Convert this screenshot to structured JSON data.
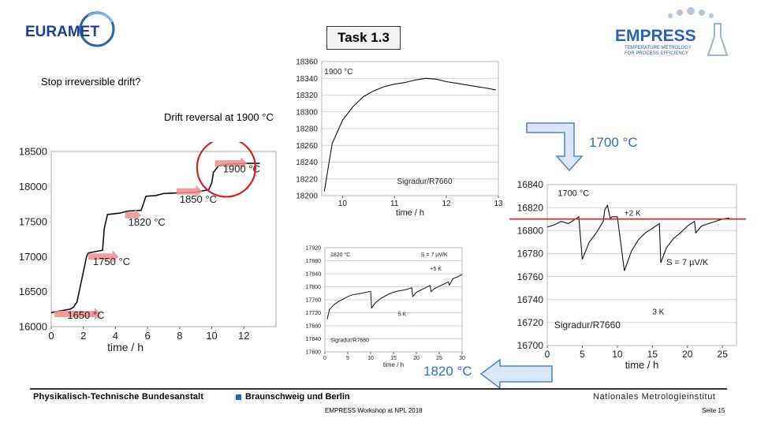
{
  "header": {
    "task_label": "Task 1.3",
    "euramet_logo_text": "EURAMET",
    "empress_logo_text": "EMPRESS",
    "empress_tagline_1": "TEMPERATURE METROLOGY",
    "empress_tagline_2": "FOR PROCESS EFFICIENCY"
  },
  "annotations": {
    "stop_question": "Stop irreversible drift?",
    "drift_reversal": "Drift reversal at 1900 °C",
    "arrow_label_1700": "1700 °C",
    "arrow_label_1820": "1820 °C"
  },
  "footer": {
    "institute_left": "Physikalisch-Technische Bundesanstalt",
    "institute_city": "Braunschweig und Berlin",
    "institute_right": "Nationales Metrologieinstitut",
    "workshop": "EMPRESS Workshop at NPL 2018",
    "page": "Seite 15"
  },
  "colors": {
    "accent_blue": "#2f6fc4",
    "highlight_red": "#d42020",
    "step_arrow_pink": "#f08c8c"
  },
  "chart_data": [
    {
      "type": "line",
      "xlabel": "time / h",
      "ylabel": "",
      "xlim": [
        0,
        14
      ],
      "ylim": [
        16000,
        18500
      ],
      "xticks": [
        0,
        2,
        4,
        6,
        8,
        10,
        12
      ],
      "yticks": [
        16000,
        16500,
        17000,
        17500,
        18000,
        18500
      ],
      "annotations": [
        "1650 °C",
        "1750 °C",
        "1820 °C",
        "1850 °C",
        "1900 °C"
      ],
      "series": [
        {
          "x": [
            0,
            1.2,
            1.4,
            1.45,
            1.6,
            2.2,
            2.3,
            2.5,
            3.2,
            3.3,
            3.5,
            4.3,
            4.6,
            4.8,
            5.6,
            5.9,
            6.5,
            7.0,
            8.0,
            9.0,
            9.5,
            9.8,
            10.0,
            10.1,
            10.4,
            11.0,
            12.0,
            13.0
          ],
          "y": [
            16200,
            16250,
            16280,
            16300,
            16350,
            17000,
            17050,
            17060,
            17090,
            17400,
            17600,
            17620,
            17640,
            17650,
            17660,
            17860,
            17870,
            17900,
            17910,
            17920,
            17940,
            17950,
            18050,
            18200,
            18290,
            18320,
            18330,
            18330
          ]
        }
      ]
    },
    {
      "type": "line",
      "xlabel": "time / h",
      "ylabel": "",
      "xlim": [
        9.6,
        13
      ],
      "ylim": [
        18200,
        18360
      ],
      "xticks": [
        10,
        11,
        12,
        13
      ],
      "yticks": [
        18200,
        18220,
        18240,
        18260,
        18280,
        18300,
        18320,
        18340,
        18360
      ],
      "annotations": [
        "1900 °C",
        "Sigradur/R7660"
      ],
      "series": [
        {
          "x": [
            9.65,
            9.8,
            10.0,
            10.2,
            10.4,
            10.6,
            10.8,
            11.0,
            11.2,
            11.4,
            11.6,
            11.8,
            12.0,
            12.2,
            12.4,
            12.6,
            12.8,
            12.95
          ],
          "y": [
            18205,
            18262,
            18290,
            18306,
            18318,
            18325,
            18330,
            18333,
            18335,
            18338,
            18340,
            18339,
            18336,
            18334,
            18332,
            18330,
            18328,
            18326
          ]
        }
      ]
    },
    {
      "type": "line",
      "xlabel": "time / h",
      "ylabel": "",
      "xlim": [
        0,
        30
      ],
      "ylim": [
        17600,
        17920
      ],
      "xticks": [
        0,
        5,
        10,
        15,
        20,
        25,
        30
      ],
      "yticks": [
        17600,
        17640,
        17680,
        17720,
        17760,
        17800,
        17840,
        17880,
        17920
      ],
      "annotations": [
        "1820 °C",
        "S = 7 µV/K",
        "+5 K",
        "5 K",
        "Sigradur/R7660"
      ],
      "series": [
        {
          "x": [
            0.5,
            1.0,
            2.0,
            3.0,
            4.0,
            5.0,
            6.0,
            8.0,
            10.0,
            10.2,
            11,
            12,
            13,
            14,
            15,
            16,
            18,
            19,
            19.2,
            20,
            22,
            23,
            23.2,
            24,
            26,
            27,
            27.2,
            28,
            29,
            30
          ],
          "y": [
            17700,
            17730,
            17745,
            17755,
            17762,
            17770,
            17775,
            17780,
            17786,
            17735,
            17750,
            17762,
            17770,
            17778,
            17783,
            17787,
            17792,
            17797,
            17770,
            17783,
            17797,
            17804,
            17785,
            17795,
            17808,
            17815,
            17805,
            17825,
            17830,
            17838
          ]
        }
      ]
    },
    {
      "type": "line",
      "xlabel": "time / h",
      "ylabel": "",
      "xlim": [
        0,
        27
      ],
      "ylim": [
        16700,
        16840
      ],
      "xticks": [
        0,
        5,
        10,
        15,
        20,
        25
      ],
      "yticks": [
        16700,
        16720,
        16740,
        16760,
        16780,
        16800,
        16820,
        16840
      ],
      "reference_line_y": 16810,
      "annotations": [
        "1700 °C",
        "+2 K",
        "S = 7 µV/K",
        "3 K",
        "Sigradur/R7660"
      ],
      "series": [
        {
          "x": [
            0,
            1,
            2,
            3,
            4,
            4.5,
            5,
            6,
            7,
            8,
            8.2,
            8.6,
            9,
            9.2,
            10,
            11,
            12,
            13,
            14,
            15,
            16,
            16.2,
            17,
            18,
            19,
            20,
            21,
            21.2,
            22,
            23,
            24,
            25,
            26
          ],
          "y": [
            16803,
            16805,
            16808,
            16806,
            16810,
            16812,
            16775,
            16790,
            16798,
            16808,
            16818,
            16822,
            16810,
            16812,
            16812,
            16765,
            16782,
            16792,
            16798,
            16802,
            16806,
            16772,
            16785,
            16793,
            16798,
            16804,
            16808,
            16798,
            16804,
            16806,
            16808,
            16810,
            16811
          ]
        }
      ]
    }
  ]
}
